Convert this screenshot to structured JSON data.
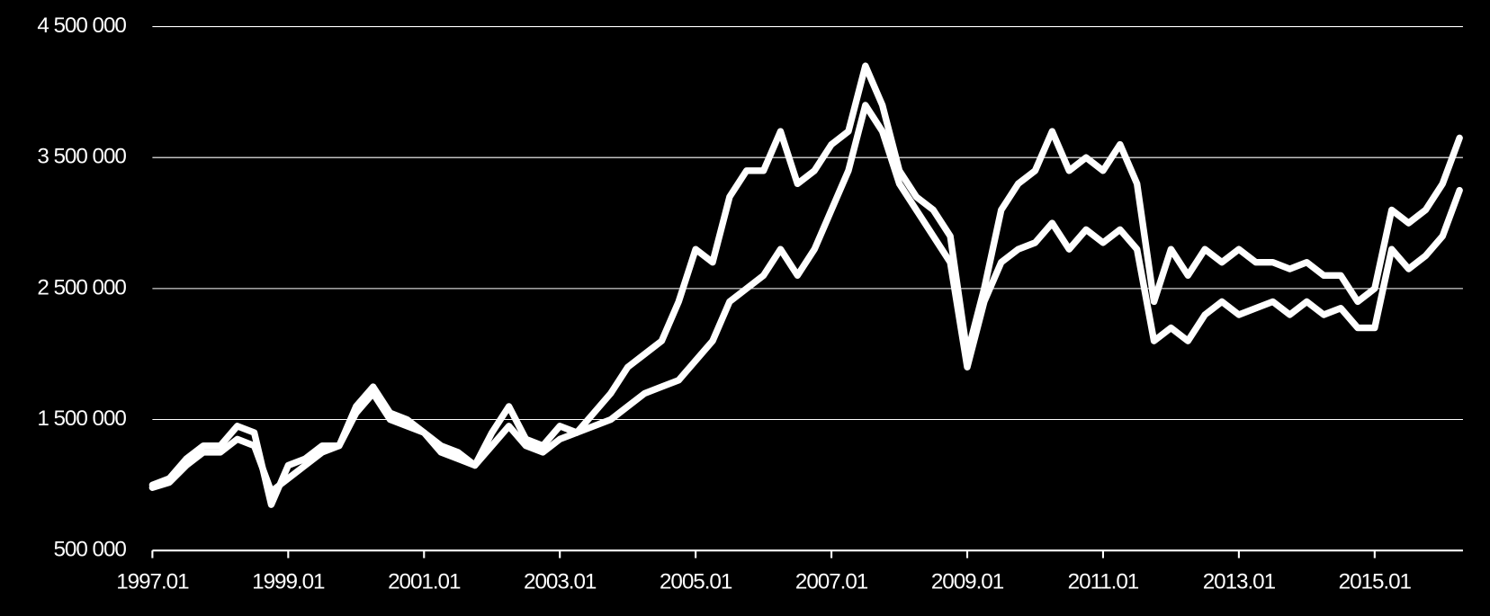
{
  "chart_data": {
    "type": "line",
    "x": [
      1997,
      1997.25,
      1997.5,
      1997.75,
      1998,
      1998.25,
      1998.5,
      1998.75,
      1999,
      1999.25,
      1999.5,
      1999.75,
      2000,
      2000.25,
      2000.5,
      2000.75,
      2001,
      2001.25,
      2001.5,
      2001.75,
      2002,
      2002.25,
      2002.5,
      2002.75,
      2003,
      2003.25,
      2003.5,
      2003.75,
      2004,
      2004.25,
      2004.5,
      2004.75,
      2005,
      2005.25,
      2005.5,
      2005.75,
      2006,
      2006.25,
      2006.5,
      2006.75,
      2007,
      2007.25,
      2007.5,
      2007.75,
      2008,
      2008.25,
      2008.5,
      2008.75,
      2009,
      2009.25,
      2009.5,
      2009.75,
      2010,
      2010.25,
      2010.5,
      2010.75,
      2011,
      2011.25,
      2011.5,
      2011.75,
      2012,
      2012.25,
      2012.5,
      2012.75,
      2013,
      2013.25,
      2013.5,
      2013.75,
      2014,
      2014.25,
      2014.5,
      2014.75,
      2015,
      2015.25,
      2015.5,
      2015.75,
      2016,
      2016.25
    ],
    "series": [
      {
        "color": "#ffffff",
        "values": [
          1000000,
          1050000,
          1200000,
          1300000,
          1300000,
          1450000,
          1400000,
          850000,
          1150000,
          1200000,
          1300000,
          1300000,
          1600000,
          1750000,
          1550000,
          1500000,
          1400000,
          1300000,
          1250000,
          1150000,
          1400000,
          1600000,
          1350000,
          1300000,
          1450000,
          1400000,
          1550000,
          1700000,
          1900000,
          2000000,
          2100000,
          2400000,
          2800000,
          2700000,
          3200000,
          3400000,
          3400000,
          3700000,
          3300000,
          3400000,
          3600000,
          3700000,
          4200000,
          3900000,
          3400000,
          3200000,
          3100000,
          2900000,
          2000000,
          2500000,
          3100000,
          3300000,
          3400000,
          3700000,
          3400000,
          3500000,
          3400000,
          3600000,
          3300000,
          2400000,
          2800000,
          2600000,
          2800000,
          2700000,
          2800000,
          2700000,
          2700000,
          2650000,
          2700000,
          2600000,
          2600000,
          2400000,
          2500000,
          3100000,
          3000000,
          3100000,
          3300000,
          3650000
        ]
      },
      {
        "color": "#ffffff",
        "values": [
          980000,
          1020000,
          1150000,
          1250000,
          1250000,
          1350000,
          1300000,
          950000,
          1050000,
          1150000,
          1250000,
          1300000,
          1550000,
          1700000,
          1500000,
          1450000,
          1400000,
          1250000,
          1200000,
          1150000,
          1300000,
          1450000,
          1300000,
          1250000,
          1350000,
          1400000,
          1450000,
          1500000,
          1600000,
          1700000,
          1750000,
          1800000,
          1950000,
          2100000,
          2400000,
          2500000,
          2600000,
          2800000,
          2600000,
          2800000,
          3100000,
          3400000,
          3900000,
          3700000,
          3300000,
          3100000,
          2900000,
          2700000,
          1900000,
          2400000,
          2700000,
          2800000,
          2850000,
          3000000,
          2800000,
          2950000,
          2850000,
          2950000,
          2800000,
          2100000,
          2200000,
          2100000,
          2300000,
          2400000,
          2300000,
          2350000,
          2400000,
          2300000,
          2400000,
          2300000,
          2350000,
          2200000,
          2200000,
          2800000,
          2650000,
          2750000,
          2900000,
          3250000
        ]
      }
    ],
    "xlim": [
      1997,
      2016.3
    ],
    "xticks": [
      {
        "value": 1997,
        "label": "1997.01"
      },
      {
        "value": 1999,
        "label": "1999.01"
      },
      {
        "value": 2001,
        "label": "2001.01"
      },
      {
        "value": 2003,
        "label": "2003.01"
      },
      {
        "value": 2005,
        "label": "2005.01"
      },
      {
        "value": 2007,
        "label": "2007.01"
      },
      {
        "value": 2009,
        "label": "2009.01"
      },
      {
        "value": 2011,
        "label": "2011.01"
      },
      {
        "value": 2013,
        "label": "2013.01"
      },
      {
        "value": 2015,
        "label": "2015.01"
      }
    ],
    "ylim": [
      500000,
      4500000
    ],
    "yticks": [
      {
        "value": 500000,
        "label": "500 000"
      },
      {
        "value": 1500000,
        "label": "1 500 000"
      },
      {
        "value": 2500000,
        "label": "2 500 000"
      },
      {
        "value": 3500000,
        "label": "3 500 000"
      },
      {
        "value": 4500000,
        "label": "4 500 000"
      }
    ],
    "grid": true
  }
}
